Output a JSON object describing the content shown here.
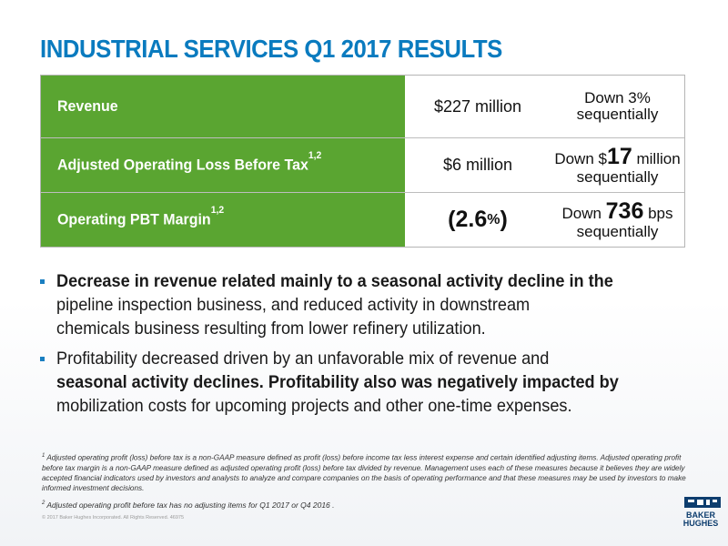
{
  "title": "INDUSTRIAL SERVICES Q1 2017 RESULTS",
  "table": {
    "rows": [
      {
        "label": "Revenue",
        "label_sup": "",
        "value": "$227 million",
        "change_line1_prefix": "Down 3%",
        "change_line1_num": "",
        "change_line1_suffix": "",
        "change_line2": "sequentially"
      },
      {
        "label": "Adjusted Operating Loss Before Tax",
        "label_sup": "1,2",
        "value": "$6 million",
        "change_line1_prefix": "Down $",
        "change_line1_num": "17",
        "change_line1_suffix": " million",
        "change_line2": "sequentially"
      },
      {
        "label": "Operating PBT Margin",
        "label_sup": "1,2",
        "value_main": "(2.6",
        "value_pct": "%",
        "value_close": ")",
        "change_line1_prefix": "Down ",
        "change_line1_num": "736",
        "change_line1_suffix": " bps",
        "change_line2": "sequentially"
      }
    ]
  },
  "bullets": {
    "b1": {
      "line1": "Decrease in revenue related mainly to a seasonal activity decline in the",
      "line2": "pipeline inspection business, and reduced activity in downstream",
      "line3": "chemicals business resulting from lower refinery utilization."
    },
    "b2": {
      "line1": "Profitability decreased driven by an unfavorable mix of revenue and",
      "line2": "seasonal activity declines. Profitability also was negatively impacted by",
      "line3": "mobilization costs for upcoming projects and other one-time expenses."
    }
  },
  "footnotes": {
    "f1_sup": "1",
    "f1_text": "Adjusted operating profit (loss) before tax is a non-GAAP measure defined as profit (loss) before income tax less interest expense and certain identified adjusting items. Adjusted operating profit before tax margin is a non-GAAP measure defined as adjusted operating profit (loss) before tax divided by revenue. Management uses each of these measures because it believes they are widely accepted financial indicators used by investors and analysts to analyze and compare companies on the basis of operating performance and that these measures may be used by investors to make informed investment decisions.",
    "f2_sup": "2",
    "f2_text": "Adjusted operating profit before tax has no adjusting items for Q1 2017 or Q4 2016 .",
    "copyright": "© 2017 Baker Hughes Incorporated. All Rights Reserved. 46975"
  },
  "logo": {
    "line1": "BAKER",
    "line2": "HUGHES"
  },
  "colors": {
    "title": "#0a7bbf",
    "label_bg": "#5aa531",
    "bullet_marker": "#1a7fc1",
    "logo": "#0d3d6e"
  }
}
